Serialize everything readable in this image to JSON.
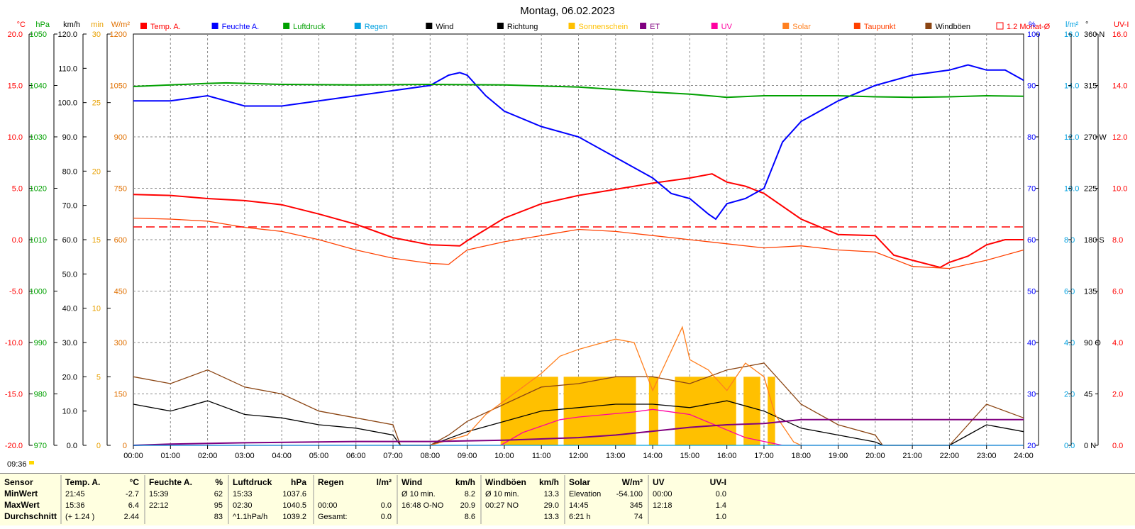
{
  "title": "Montag, 06.02.2023",
  "left_axes": [
    {
      "unit": "°C",
      "color": "#ff0000",
      "ticks": [
        "20.0",
        "15.0",
        "10.0",
        "5.0",
        "0.0",
        "-5.0",
        "-10.0",
        "-15.0",
        "-20.0"
      ]
    },
    {
      "unit": "hPa",
      "color": "#00a000",
      "ticks": [
        "1050",
        "1040",
        "1030",
        "1020",
        "1010",
        "1000",
        "990",
        "980",
        "970"
      ]
    },
    {
      "unit": "km/h",
      "color": "#000000",
      "ticks": [
        "120.0",
        "110.0",
        "100.0",
        "90.0",
        "80.0",
        "70.0",
        "60.0",
        "50.0",
        "40.0",
        "30.0",
        "20.0",
        "10.0",
        "0.0"
      ]
    },
    {
      "unit": "min",
      "color": "#e8a000",
      "ticks": [
        "30",
        "25",
        "20",
        "15",
        "10",
        "5",
        "0"
      ]
    },
    {
      "unit": "W/m²",
      "color": "#e07000",
      "ticks": [
        "1200",
        "1050",
        "900",
        "750",
        "600",
        "450",
        "300",
        "150",
        "0"
      ]
    }
  ],
  "right_axes": [
    {
      "unit": "%",
      "color": "#0000ff",
      "ticks": [
        "100",
        "90",
        "80",
        "70",
        "60",
        "50",
        "40",
        "30",
        "20"
      ]
    },
    {
      "unit": "l/m²",
      "color": "#00a0e0",
      "ticks": [
        "16.0",
        "14.0",
        "12.0",
        "10.0",
        "8.0",
        "6.0",
        "4.0",
        "2.0",
        "0.0"
      ]
    },
    {
      "unit": "°",
      "color": "#000000",
      "ticks": [
        "360 N",
        "315",
        "270 W",
        "225",
        "180 S",
        "135",
        "90 O",
        "45",
        "0 N"
      ]
    },
    {
      "unit": "UV-I",
      "color": "#ff0000",
      "ticks": [
        "16.0",
        "14.0",
        "12.0",
        "10.0",
        "8.0",
        "6.0",
        "4.0",
        "2.0",
        "0.0"
      ]
    }
  ],
  "legend": [
    {
      "label": "Temp. A.",
      "color": "#ff0000",
      "text_color": "#ff0000"
    },
    {
      "label": "Feuchte A.",
      "color": "#0000ff",
      "text_color": "#0000ff"
    },
    {
      "label": "Luftdruck",
      "color": "#00a000",
      "text_color": "#00a000"
    },
    {
      "label": "Regen",
      "color": "#00a0e0",
      "text_color": "#00a0e0"
    },
    {
      "label": "Wind",
      "color": "#000000",
      "text_color": "#000000"
    },
    {
      "label": "Richtung",
      "color": "#000000",
      "text_color": "#000000"
    },
    {
      "label": "Sonnenschein",
      "color": "#ffc000",
      "text_color": "#ffc000"
    },
    {
      "label": "ET",
      "color": "#800080",
      "text_color": "#800080"
    },
    {
      "label": "UV",
      "color": "#ff00a0",
      "text_color": "#ff00a0"
    },
    {
      "label": "Solar",
      "color": "#ff8020",
      "text_color": "#ff8020"
    },
    {
      "label": "Taupunkt",
      "color": "#ff4000",
      "text_color": "#ff4000"
    },
    {
      "label": "Windböen",
      "color": "#8b4513",
      "text_color": "#000000"
    },
    {
      "label": "1.2 Monat-Ø",
      "color": "#ff0000",
      "text_color": "#ff0000"
    }
  ],
  "x_ticks": [
    "00:00",
    "01:00",
    "02:00",
    "03:00",
    "04:00",
    "05:00",
    "06:00",
    "07:00",
    "08:00",
    "09:00",
    "10:00",
    "11:00",
    "12:00",
    "13:00",
    "14:00",
    "15:00",
    "16:00",
    "17:00",
    "18:00",
    "19:00",
    "20:00",
    "21:00",
    "22:00",
    "23:00",
    "24:00"
  ],
  "sunrise_label": "09:36",
  "chart_data": {
    "type": "line",
    "title": "Montag, 06.02.2023",
    "x_range_hours": [
      0,
      24
    ],
    "grid": true,
    "series": [
      {
        "name": "Temp. A.",
        "unit": "°C",
        "color": "#ff0000",
        "axis": "°C",
        "ylim": [
          -20,
          20
        ],
        "x": [
          0,
          1,
          2,
          3,
          4,
          5,
          6,
          7,
          8,
          8.8,
          9,
          10,
          11,
          12,
          13,
          14,
          15,
          15.6,
          16,
          16.5,
          17,
          18,
          19,
          20,
          20.5,
          21,
          21.75,
          22,
          22.5,
          23,
          23.5,
          24
        ],
        "y": [
          4.4,
          4.3,
          4.0,
          3.8,
          3.4,
          2.5,
          1.5,
          0.2,
          -0.5,
          -0.6,
          -0.1,
          2.1,
          3.5,
          4.3,
          4.9,
          5.5,
          6.0,
          6.4,
          5.6,
          5.2,
          4.5,
          2.0,
          0.5,
          0.4,
          -1.5,
          -2.0,
          -2.7,
          -2.2,
          -1.6,
          -0.5,
          0.0,
          0.0
        ]
      },
      {
        "name": "Taupunkt",
        "unit": "°C",
        "color": "#ff4000",
        "axis": "°C",
        "ylim": [
          -20,
          20
        ],
        "x": [
          0,
          1,
          2,
          3,
          4,
          5,
          6,
          7,
          8,
          8.5,
          9,
          10,
          11,
          12,
          13,
          14,
          15,
          16,
          17,
          18,
          19,
          20,
          21,
          22,
          23,
          24
        ],
        "y": [
          2.1,
          2.0,
          1.8,
          1.2,
          0.8,
          0.0,
          -1.0,
          -1.8,
          -2.3,
          -2.4,
          -1.0,
          -0.2,
          0.4,
          1.0,
          0.8,
          0.4,
          0.0,
          -0.4,
          -0.8,
          -0.6,
          -1.0,
          -1.2,
          -2.6,
          -2.8,
          -2.0,
          -1.0
        ]
      },
      {
        "name": "Feuchte A.",
        "unit": "%",
        "color": "#0000ff",
        "axis": "%",
        "ylim": [
          20,
          100
        ],
        "x": [
          0,
          1,
          2,
          3,
          4,
          5,
          6,
          7,
          8,
          8.5,
          8.8,
          9,
          9.5,
          10,
          11,
          12,
          13,
          14,
          14.5,
          15,
          15.5,
          15.7,
          16,
          16.5,
          17,
          17.5,
          18,
          19,
          20,
          21,
          22,
          22.5,
          23,
          23.5,
          24
        ],
        "y": [
          87,
          87,
          88,
          86,
          86,
          87,
          88,
          89,
          90,
          92,
          92.5,
          92,
          88,
          85,
          82,
          80,
          76,
          72,
          69,
          68,
          65,
          64,
          67,
          68,
          70,
          79,
          83,
          87,
          90,
          92,
          93,
          94,
          93,
          93,
          91
        ]
      },
      {
        "name": "Luftdruck",
        "unit": "hPa",
        "color": "#00a000",
        "axis": "hPa",
        "ylim": [
          970,
          1050
        ],
        "x": [
          0,
          2,
          2.5,
          4,
          6,
          8,
          10,
          12,
          13,
          14,
          15,
          16,
          17,
          18,
          19,
          20,
          21,
          22,
          23,
          24
        ],
        "y": [
          1039.8,
          1040.4,
          1040.5,
          1040.2,
          1040.1,
          1040.2,
          1040.1,
          1039.7,
          1039.2,
          1038.7,
          1038.3,
          1037.7,
          1038.0,
          1038.0,
          1038.0,
          1037.8,
          1037.7,
          1037.8,
          1038.0,
          1037.9
        ]
      },
      {
        "name": "Wind",
        "unit": "km/h",
        "color": "#000000",
        "axis": "km/h",
        "ylim": [
          0,
          120
        ],
        "x": [
          0,
          1,
          2,
          3,
          4,
          5,
          6,
          7,
          7.2,
          8,
          8.5,
          9,
          10,
          11,
          12,
          13,
          14,
          15,
          16,
          17,
          18,
          19,
          20,
          20.2,
          22,
          22.5,
          23,
          24
        ],
        "y": [
          12,
          10,
          13,
          9,
          8,
          6,
          5,
          3,
          0,
          0,
          2,
          4,
          7,
          10,
          11,
          12,
          12,
          11,
          13,
          10,
          5,
          3,
          1,
          0,
          0,
          3,
          6,
          4
        ]
      },
      {
        "name": "Windböen",
        "unit": "km/h",
        "color": "#8b4513",
        "axis": "km/h",
        "ylim": [
          0,
          120
        ],
        "x": [
          0,
          1,
          2,
          3,
          4,
          5,
          6,
          7,
          7.2,
          8,
          8.5,
          9,
          10,
          11,
          12,
          13,
          14,
          15,
          16,
          17,
          18,
          19,
          20,
          20.2,
          22,
          22.5,
          23,
          24
        ],
        "y": [
          20,
          18,
          22,
          17,
          15,
          10,
          8,
          6,
          0,
          0,
          3,
          7,
          12,
          17,
          18,
          20,
          20,
          18,
          22,
          24,
          12,
          6,
          3,
          0,
          0,
          6,
          12,
          8
        ]
      },
      {
        "name": "Solar",
        "unit": "W/m²",
        "color": "#ff8020",
        "axis": "W/m²",
        "ylim": [
          0,
          1200
        ],
        "x": [
          8,
          9,
          9.5,
          10,
          11,
          11.5,
          12,
          13,
          13.5,
          14,
          14.8,
          15,
          15.5,
          16,
          16.5,
          17,
          17.3,
          17.8,
          18
        ],
        "y": [
          0,
          30,
          90,
          130,
          210,
          260,
          280,
          310,
          300,
          160,
          345,
          250,
          220,
          160,
          240,
          200,
          90,
          10,
          0
        ]
      },
      {
        "name": "UV",
        "unit": "UV-I",
        "color": "#ff00a0",
        "axis": "UV-I",
        "ylim": [
          0,
          16
        ],
        "x": [
          0,
          9.9,
          10.5,
          11.5,
          12,
          13.5,
          14,
          15,
          15.5,
          16,
          16.5,
          17.5,
          24
        ],
        "y": [
          0,
          0,
          0.5,
          1.0,
          1.1,
          1.3,
          1.4,
          1.2,
          0.9,
          0.6,
          0.3,
          0,
          0
        ]
      },
      {
        "name": "ET",
        "unit": "l/m²",
        "color": "#800080",
        "axis": "l/m²",
        "ylim": [
          0,
          16
        ],
        "x": [
          0,
          1,
          3,
          6,
          8,
          10,
          12,
          13,
          14,
          15,
          16,
          17,
          18,
          24
        ],
        "y": [
          0,
          0.05,
          0.1,
          0.15,
          0.15,
          0.2,
          0.3,
          0.4,
          0.55,
          0.7,
          0.8,
          0.85,
          1.0,
          1.0
        ]
      },
      {
        "name": "Regen",
        "unit": "l/m²",
        "color": "#00a0e0",
        "axis": "l/m²",
        "ylim": [
          0,
          16
        ],
        "x": [
          0,
          24
        ],
        "y": [
          0,
          0
        ]
      },
      {
        "name": "1.2 Monat-Ø",
        "unit": "°C",
        "color": "#ff0000",
        "axis": "°C",
        "ylim": [
          -20,
          20
        ],
        "x": [
          0,
          24
        ],
        "y": [
          1.24,
          1.24
        ]
      }
    ],
    "sunshine_blocks_hours": [
      [
        9.9,
        11.45
      ],
      [
        11.6,
        13.55
      ],
      [
        13.9,
        14.15
      ],
      [
        14.6,
        16.25
      ],
      [
        16.45,
        16.9
      ],
      [
        17.1,
        17.3
      ]
    ],
    "sunshine_block_minutes": 5
  },
  "stats": {
    "rows": [
      "Sensor",
      "MinWert",
      "MaxWert",
      "Durchschnitt"
    ],
    "groups": [
      {
        "header": "Temp. A.",
        "unit": "°C",
        "lines": [
          [
            "21:45",
            "-2.7"
          ],
          [
            "15:36",
            "6.4"
          ],
          [
            "(+ 1.24 )",
            "2.44"
          ]
        ]
      },
      {
        "header": "Feuchte A.",
        "unit": "%",
        "lines": [
          [
            "15:39",
            "62"
          ],
          [
            "22:12",
            "95"
          ],
          [
            "",
            "83"
          ]
        ]
      },
      {
        "header": "Luftdruck",
        "unit": "hPa",
        "lines": [
          [
            "15:33",
            "1037.6"
          ],
          [
            "02:30",
            "1040.5"
          ],
          [
            "^1.1hPa/h",
            "1039.2"
          ]
        ]
      },
      {
        "header": "Regen",
        "unit": "l/m²",
        "lines": [
          [
            "",
            ""
          ],
          [
            "00:00",
            "0.0"
          ],
          [
            "Gesamt:",
            "0.0"
          ]
        ]
      },
      {
        "header": "Wind",
        "unit": "km/h",
        "lines": [
          [
            "Ø 10 min.",
            "8.2"
          ],
          [
            "16:48   O-NO",
            "20.9"
          ],
          [
            "",
            "8.6"
          ]
        ]
      },
      {
        "header": "Windböen",
        "unit": "km/h",
        "lines": [
          [
            "Ø 10 min.",
            "13.3"
          ],
          [
            "00:27   NO",
            "29.0"
          ],
          [
            "",
            "13.3"
          ]
        ]
      },
      {
        "header": "Solar",
        "unit": "W/m²",
        "lines": [
          [
            "Elevation",
            "-54.100"
          ],
          [
            "14:45",
            "345"
          ],
          [
            "6:21 h",
            "74"
          ]
        ]
      },
      {
        "header": "UV",
        "unit": "UV-I",
        "lines": [
          [
            "00:00",
            "0.0"
          ],
          [
            "12:18",
            "1.4"
          ],
          [
            "",
            "1.0"
          ]
        ]
      }
    ]
  }
}
